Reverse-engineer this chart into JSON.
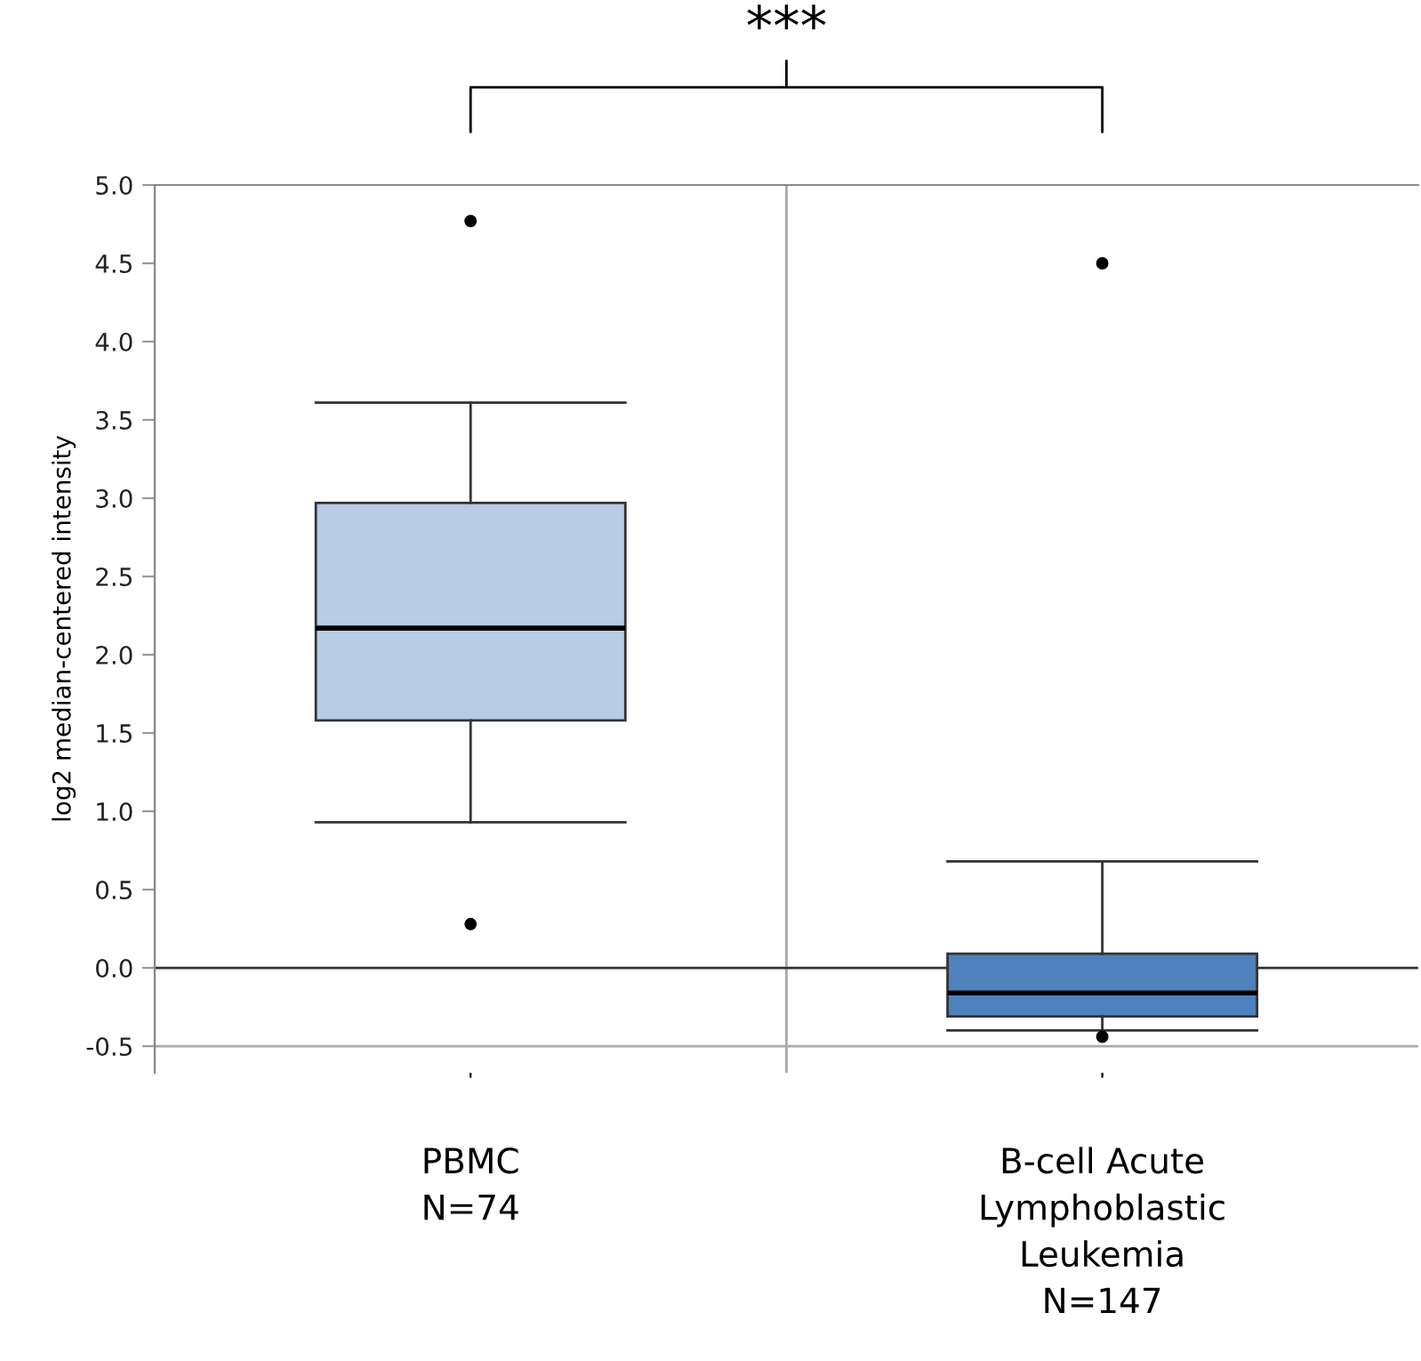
{
  "chart_data": {
    "type": "box",
    "ylabel": "log2 median-centered intensity",
    "categories": [
      "PBMC\nN=74",
      "B-cell Acute\nLymphoblastic\nLeukemia\nN=147"
    ],
    "boxes": [
      {
        "low": 0.93,
        "q1": 1.58,
        "median": 2.17,
        "q3": 2.97,
        "high": 3.61,
        "outliers": [
          4.77,
          0.28
        ]
      },
      {
        "low": -0.4,
        "q1": -0.31,
        "median": -0.16,
        "q3": 0.09,
        "high": 0.68,
        "outliers": [
          4.5,
          -0.44
        ]
      }
    ],
    "colors": [
      "#b8cce4",
      "#4f81bd"
    ],
    "ylim": [
      -0.67,
      5.0
    ],
    "yticks": [
      {
        "value": -0.5,
        "label": "-0.5"
      },
      {
        "value": 0.0,
        "label": "0.0"
      },
      {
        "value": 0.5,
        "label": "0.5"
      },
      {
        "value": 1.0,
        "label": "1.0"
      },
      {
        "value": 1.5,
        "label": "1.5"
      },
      {
        "value": 2.0,
        "label": "2.0"
      },
      {
        "value": 2.5,
        "label": "2.5"
      },
      {
        "value": 3.0,
        "label": "3.0"
      },
      {
        "value": 3.5,
        "label": "3.5"
      },
      {
        "value": 4.0,
        "label": "4.0"
      },
      {
        "value": 4.5,
        "label": "4.5"
      },
      {
        "value": 5.0,
        "label": "5.0"
      }
    ],
    "ref_lines": [
      {
        "axis": "y",
        "value": 0.0,
        "color": "#333333"
      },
      {
        "axis": "y",
        "value": -0.5,
        "color": "#aaaaaa"
      }
    ],
    "annotations": [
      "***"
    ],
    "grid": false,
    "legend": false
  }
}
